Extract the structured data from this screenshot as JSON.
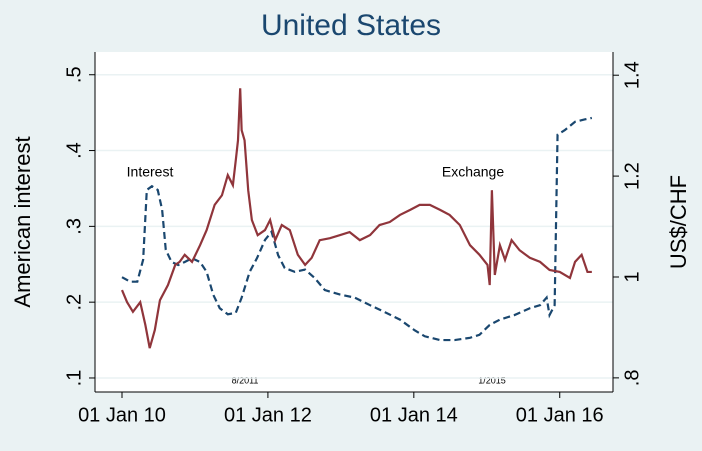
{
  "chart_data": {
    "type": "line",
    "title": "United States",
    "y_label": "American interest",
    "y2_label": "US$/CHF",
    "annotations": [
      "8/2011",
      "1/2015"
    ],
    "xlim": [
      2009.63,
      2016.73
    ],
    "xticks": [
      {
        "value": 2010,
        "label": "01 Jan 10"
      },
      {
        "value": 2012,
        "label": "01 Jan 12"
      },
      {
        "value": 2014,
        "label": "01 Jan 14"
      },
      {
        "value": 2016,
        "label": "01 Jan 16"
      }
    ],
    "ylim": [
      0.0815,
      0.53
    ],
    "yticks": [
      {
        "value": 0.1,
        "label": ".1"
      },
      {
        "value": 0.2,
        "label": ".2"
      },
      {
        "value": 0.3,
        "label": ".3"
      },
      {
        "value": 0.4,
        "label": ".4"
      },
      {
        "value": 0.5,
        "label": ".5"
      }
    ],
    "y2lim": [
      0.772,
      1.446
    ],
    "y2ticks": [
      {
        "value": 0.8,
        "label": ".8"
      },
      1,
      1.2,
      1.4
    ],
    "grid": true,
    "series": [
      {
        "name": "Interest",
        "color": "#1a476f",
        "dashed": true,
        "x": [
          2010.0,
          2010.11,
          2010.21,
          2010.29,
          2010.34,
          2010.41,
          2010.49,
          2010.55,
          2010.6,
          2010.68,
          2010.77,
          2010.86,
          2010.96,
          2011.07,
          2011.16,
          2011.25,
          2011.34,
          2011.45,
          2011.56,
          2011.64,
          2011.75,
          2011.85,
          2011.96,
          2012.05,
          2012.14,
          2012.23,
          2012.37,
          2012.51,
          2012.64,
          2012.78,
          2012.99,
          2013.19,
          2013.4,
          2013.6,
          2013.81,
          2014.01,
          2014.15,
          2014.36,
          2014.56,
          2014.77,
          2014.9,
          2015.04,
          2015.18,
          2015.38,
          2015.59,
          2015.73,
          2015.82,
          2015.86,
          2015.93,
          2015.97,
          2016.07,
          2016.21,
          2016.34,
          2016.44
        ],
        "values": [
          0.233,
          0.227,
          0.227,
          0.256,
          0.348,
          0.353,
          0.348,
          0.322,
          0.269,
          0.253,
          0.249,
          0.253,
          0.258,
          0.253,
          0.24,
          0.21,
          0.192,
          0.184,
          0.186,
          0.206,
          0.24,
          0.258,
          0.282,
          0.293,
          0.262,
          0.245,
          0.24,
          0.243,
          0.232,
          0.216,
          0.21,
          0.206,
          0.196,
          0.187,
          0.177,
          0.163,
          0.155,
          0.15,
          0.15,
          0.153,
          0.157,
          0.17,
          0.177,
          0.183,
          0.192,
          0.196,
          0.206,
          0.183,
          0.196,
          0.421,
          0.427,
          0.438,
          0.441,
          0.443
        ]
      },
      {
        "name": "Exchange",
        "color": "#90353b",
        "axis": "y2",
        "x": [
          2010.0,
          2010.07,
          2010.15,
          2010.25,
          2010.32,
          2010.38,
          2010.45,
          2010.52,
          2010.63,
          2010.73,
          2010.79,
          2010.86,
          2010.96,
          2011.07,
          2011.16,
          2011.27,
          2011.37,
          2011.45,
          2011.52,
          2011.56,
          2011.59,
          2011.62,
          2011.64,
          2011.68,
          2011.73,
          2011.78,
          2011.86,
          2011.96,
          2012.03,
          2012.1,
          2012.19,
          2012.3,
          2012.41,
          2012.51,
          2012.6,
          2012.71,
          2012.85,
          2012.99,
          2013.12,
          2013.26,
          2013.4,
          2013.53,
          2013.67,
          2013.81,
          2013.95,
          2014.08,
          2014.22,
          2014.36,
          2014.49,
          2014.63,
          2014.77,
          2014.9,
          2015.01,
          2015.04,
          2015.07,
          2015.11,
          2015.18,
          2015.25,
          2015.34,
          2015.45,
          2015.59,
          2015.73,
          2015.86,
          2016.0,
          2016.14,
          2016.21,
          2016.3,
          2016.38,
          2016.44
        ],
        "values": [
          0.974,
          0.95,
          0.931,
          0.95,
          0.905,
          0.859,
          0.895,
          0.954,
          0.984,
          1.024,
          1.03,
          1.044,
          1.03,
          1.063,
          1.093,
          1.143,
          1.162,
          1.202,
          1.182,
          1.232,
          1.271,
          1.374,
          1.291,
          1.271,
          1.172,
          1.113,
          1.083,
          1.093,
          1.113,
          1.073,
          1.103,
          1.093,
          1.044,
          1.024,
          1.038,
          1.073,
          1.077,
          1.083,
          1.089,
          1.073,
          1.083,
          1.103,
          1.109,
          1.123,
          1.133,
          1.143,
          1.143,
          1.133,
          1.123,
          1.103,
          1.063,
          1.044,
          1.024,
          0.984,
          1.172,
          1.004,
          1.063,
          1.034,
          1.073,
          1.053,
          1.038,
          1.03,
          1.014,
          1.01,
          0.998,
          1.03,
          1.044,
          1.01,
          1.01
        ]
      }
    ]
  }
}
